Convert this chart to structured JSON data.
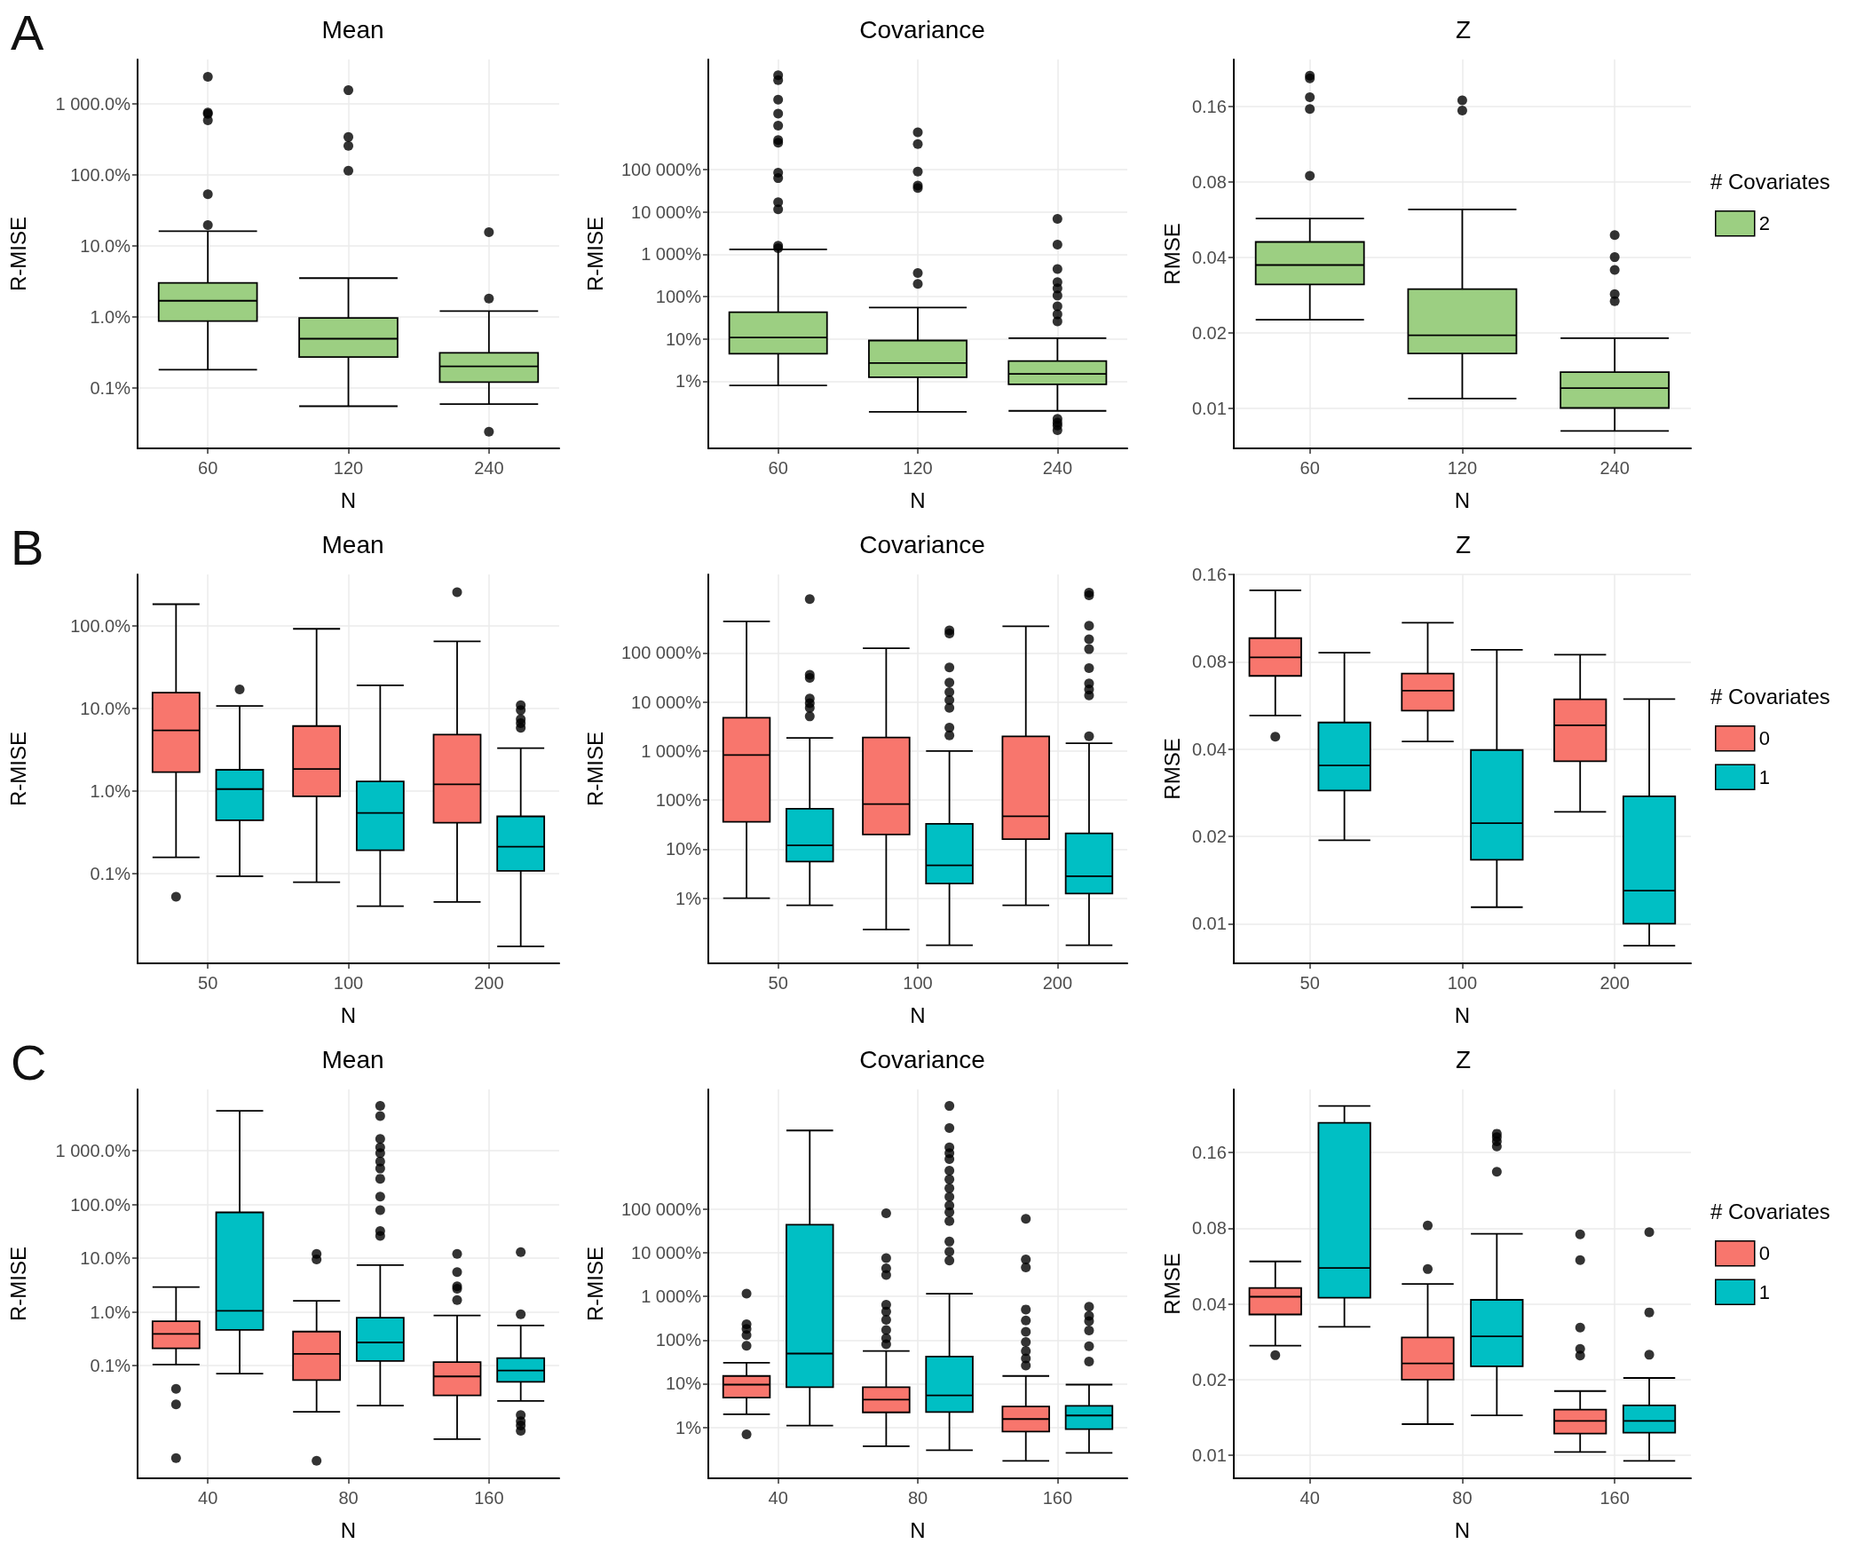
{
  "chart_data": [
    {
      "type": "box",
      "title": "Mean",
      "xlabel": "N",
      "ylabel": "R-MISE",
      "annotations": [
        "A"
      ],
      "categories": [
        "60",
        "120",
        "240"
      ],
      "log": true,
      "grid": true,
      "ylim": [
        0.014,
        4200
      ],
      "yticks": [
        {
          "value": 0.1,
          "label": "0.1%"
        },
        {
          "value": 1,
          "label": "1.0%"
        },
        {
          "value": 10,
          "label": "10.0%"
        },
        {
          "value": 100,
          "label": "100.0%"
        },
        {
          "value": 1000,
          "label": "1 000.0%"
        }
      ],
      "series": [
        {
          "color": "#9ccf82",
          "boxes": [
            {
              "low": 0.18,
              "q1": 0.87,
              "median": 1.68,
              "q3": 3.0,
              "high": 16,
              "outliers": [
                19.5,
                53,
                585,
                720,
                750,
                2400
              ]
            },
            {
              "low": 0.055,
              "q1": 0.27,
              "median": 0.49,
              "q3": 0.96,
              "high": 3.5,
              "outliers": [
                114,
                256,
                340,
                1550
              ]
            },
            {
              "low": 0.059,
              "q1": 0.12,
              "median": 0.2,
              "q3": 0.31,
              "high": 1.2,
              "outliers": [
                0.024,
                1.8,
                15.5
              ]
            }
          ]
        }
      ]
    },
    {
      "type": "box",
      "title": "Covariance",
      "xlabel": "N",
      "ylabel": "R-MISE",
      "categories": [
        "60",
        "120",
        "240"
      ],
      "log": true,
      "grid": true,
      "ylim": [
        0.026,
        40000000
      ],
      "yticks": [
        {
          "value": 1,
          "label": "1%"
        },
        {
          "value": 10,
          "label": "10%"
        },
        {
          "value": 100,
          "label": "100%"
        },
        {
          "value": 1000,
          "label": "1 000%"
        },
        {
          "value": 10000,
          "label": "10 000%"
        },
        {
          "value": 100000,
          "label": "100 000%"
        }
      ],
      "series": [
        {
          "color": "#9ccf82",
          "boxes": [
            {
              "low": 0.8,
              "q1": 4.5,
              "median": 10.8,
              "q3": 43,
              "high": 1300,
              "outliers": [
                1400,
                1600,
                11500,
                17000,
                63000,
                85000,
                430000,
                500000,
                1100000,
                2100000,
                4500000,
                13000000,
                17000000
              ]
            },
            {
              "low": 0.19,
              "q1": 1.25,
              "median": 2.7,
              "q3": 9.2,
              "high": 55,
              "outliers": [
                200,
                360,
                37000,
                42000,
                90000,
                400000,
                760000
              ]
            },
            {
              "low": 0.2,
              "q1": 0.85,
              "median": 1.5,
              "q3": 3.0,
              "high": 10.4,
              "outliers": [
                0.07,
                0.09,
                0.105,
                0.13,
                26,
                38,
                59,
                106,
                156,
                220,
                450,
                1700,
                6900
              ]
            }
          ]
        }
      ]
    },
    {
      "type": "box",
      "title": "Z",
      "xlabel": "N",
      "ylabel": "RMSE",
      "categories": [
        "60",
        "120",
        "240"
      ],
      "log": true,
      "grid": true,
      "ylim": [
        0.0069,
        0.246
      ],
      "yticks": [
        0.01,
        0.02,
        0.04,
        0.08,
        0.16
      ],
      "legend": "right",
      "legend_title": "# Covariates",
      "series": [
        {
          "name": "2",
          "color": "#9ccf82",
          "boxes": [
            {
              "low": 0.0225,
              "q1": 0.0311,
              "median": 0.0372,
              "q3": 0.046,
              "high": 0.057,
              "outliers": [
                0.0845,
                0.156,
                0.174,
                0.207,
                0.212
              ]
            },
            {
              "low": 0.0109,
              "q1": 0.0165,
              "median": 0.0195,
              "q3": 0.0298,
              "high": 0.062,
              "outliers": [
                0.154,
                0.169
              ]
            },
            {
              "low": 0.0081,
              "q1": 0.01,
              "median": 0.012,
              "q3": 0.0139,
              "high": 0.019,
              "outliers": [
                0.0267,
                0.0285,
                0.0356,
                0.04,
                0.049
              ]
            }
          ]
        }
      ]
    },
    {
      "type": "box",
      "title": "Mean",
      "xlabel": "N",
      "ylabel": "R-MISE",
      "annotations": [
        "B"
      ],
      "categories": [
        "50",
        "100",
        "200"
      ],
      "log": true,
      "grid": true,
      "ylim": [
        0.0081,
        420
      ],
      "yticks": [
        {
          "value": 0.1,
          "label": "0.1%"
        },
        {
          "value": 1,
          "label": "1.0%"
        },
        {
          "value": 10,
          "label": "10.0%"
        },
        {
          "value": 100,
          "label": "100.0%"
        }
      ],
      "series": [
        {
          "color": "#f8766d",
          "boxes": [
            {
              "low": 0.156,
              "q1": 1.69,
              "median": 5.4,
              "q3": 15.5,
              "high": 183,
              "outliers": [
                0.052
              ]
            },
            {
              "low": 0.078,
              "q1": 0.86,
              "median": 1.84,
              "q3": 6.1,
              "high": 92
            },
            {
              "low": 0.045,
              "q1": 0.41,
              "median": 1.2,
              "q3": 4.8,
              "high": 65,
              "outliers": [
                256
              ]
            }
          ]
        },
        {
          "color": "#00bfc4",
          "boxes": [
            {
              "low": 0.092,
              "q1": 0.44,
              "median": 1.05,
              "q3": 1.8,
              "high": 10.7,
              "outliers": [
                17
              ]
            },
            {
              "low": 0.04,
              "q1": 0.19,
              "median": 0.54,
              "q3": 1.3,
              "high": 19
            },
            {
              "low": 0.013,
              "q1": 0.107,
              "median": 0.21,
              "q3": 0.49,
              "high": 3.3,
              "outliers": [
                5.8,
                6.6,
                7.4,
                9.5,
                10.9
              ]
            }
          ]
        }
      ]
    },
    {
      "type": "box",
      "title": "Covariance",
      "xlabel": "N",
      "ylabel": "R-MISE",
      "categories": [
        "50",
        "100",
        "200"
      ],
      "log": true,
      "grid": true,
      "ylim": [
        0.047,
        4000000
      ],
      "yticks": [
        {
          "value": 1,
          "label": "1%"
        },
        {
          "value": 10,
          "label": "10%"
        },
        {
          "value": 100,
          "label": "100%"
        },
        {
          "value": 1000,
          "label": "1 000%"
        },
        {
          "value": 10000,
          "label": "10 000%"
        },
        {
          "value": 100000,
          "label": "100 000%"
        }
      ],
      "series": [
        {
          "color": "#f8766d",
          "boxes": [
            {
              "low": 1,
              "q1": 36,
              "median": 830,
              "q3": 4800,
              "high": 440000
            },
            {
              "low": 0.23,
              "q1": 20,
              "median": 83,
              "q3": 1900,
              "high": 125000
            },
            {
              "low": 0.72,
              "q1": 16,
              "median": 47,
              "q3": 2000,
              "high": 350000
            }
          ]
        },
        {
          "color": "#00bfc4",
          "boxes": [
            {
              "low": 0.72,
              "q1": 5.6,
              "median": 12,
              "q3": 67,
              "high": 1850,
              "outliers": [
                5100,
                7600,
                9500,
                11800,
                31000,
                36000,
                1260000
              ]
            },
            {
              "low": 0.11,
              "q1": 2.0,
              "median": 4.7,
              "q3": 33,
              "high": 1000,
              "outliers": [
                2100,
                3000,
                7600,
                11000,
                16000,
                25000,
                51000,
                250000,
                290000
              ]
            },
            {
              "low": 0.11,
              "q1": 1.25,
              "median": 2.8,
              "q3": 21,
              "high": 1450,
              "outliers": [
                2000,
                13600,
                18000,
                24000,
                49000,
                120000,
                190000,
                360000,
                1500000,
                1700000
              ]
            }
          ]
        }
      ]
    },
    {
      "type": "box",
      "title": "Z",
      "xlabel": "N",
      "ylabel": "RMSE",
      "categories": [
        "50",
        "100",
        "200"
      ],
      "log": true,
      "grid": true,
      "ylim": [
        0.0073,
        0.16
      ],
      "yticks": [
        0.01,
        0.02,
        0.04,
        0.08,
        0.16
      ],
      "legend": "right",
      "legend_title": "# Covariates",
      "series": [
        {
          "name": "0",
          "color": "#f8766d",
          "boxes": [
            {
              "low": 0.0522,
              "q1": 0.0715,
              "median": 0.0828,
              "q3": 0.0965,
              "high": 0.141,
              "outliers": [
                0.0441
              ]
            },
            {
              "low": 0.0425,
              "q1": 0.0543,
              "median": 0.0636,
              "q3": 0.0728,
              "high": 0.109
            },
            {
              "low": 0.0243,
              "q1": 0.0363,
              "median": 0.0483,
              "q3": 0.0594,
              "high": 0.0846
            }
          ]
        },
        {
          "name": "1",
          "color": "#00bfc4",
          "boxes": [
            {
              "low": 0.0194,
              "q1": 0.0288,
              "median": 0.0351,
              "q3": 0.0494,
              "high": 0.086
            },
            {
              "low": 0.0114,
              "q1": 0.0166,
              "median": 0.0222,
              "q3": 0.0397,
              "high": 0.088
            },
            {
              "low": 0.0084,
              "q1": 0.01,
              "median": 0.013,
              "q3": 0.0275,
              "high": 0.0595
            }
          ]
        }
      ]
    },
    {
      "type": "box",
      "title": "Mean",
      "xlabel": "N",
      "ylabel": "R-MISE",
      "annotations": [
        "C"
      ],
      "categories": [
        "40",
        "80",
        "160"
      ],
      "log": true,
      "grid": true,
      "ylim": [
        0.0008,
        13800
      ],
      "yticks": [
        {
          "value": 0.1,
          "label": "0.1%"
        },
        {
          "value": 1,
          "label": "1.0%"
        },
        {
          "value": 10,
          "label": "10.0%"
        },
        {
          "value": 100,
          "label": "100.0%"
        },
        {
          "value": 1000,
          "label": "1 000.0%"
        }
      ],
      "series": [
        {
          "color": "#f8766d",
          "boxes": [
            {
              "low": 0.105,
              "q1": 0.21,
              "median": 0.39,
              "q3": 0.67,
              "high": 2.9,
              "outliers": [
                0.0019,
                0.019,
                0.037
              ]
            },
            {
              "low": 0.0138,
              "q1": 0.054,
              "median": 0.165,
              "q3": 0.43,
              "high": 1.6,
              "outliers": [
                0.0017,
                9.5,
                12
              ]
            },
            {
              "low": 0.0043,
              "q1": 0.028,
              "median": 0.063,
              "q3": 0.116,
              "high": 0.86,
              "outliers": [
                1.66,
                2.7,
                3.0,
                5.5,
                12
              ]
            }
          ]
        },
        {
          "color": "#00bfc4",
          "boxes": [
            {
              "low": 0.071,
              "q1": 0.46,
              "median": 1.05,
              "q3": 71,
              "high": 5500
            },
            {
              "low": 0.018,
              "q1": 0.122,
              "median": 0.27,
              "q3": 0.78,
              "high": 7.4,
              "outliers": [
                26,
                32,
                78,
                140,
                300,
                465,
                630,
                900,
                1150,
                1650,
                4400,
                6800
              ]
            },
            {
              "low": 0.022,
              "q1": 0.05,
              "median": 0.081,
              "q3": 0.138,
              "high": 0.56,
              "outliers": [
                0.0061,
                0.0077,
                0.0092,
                0.012,
                0.9,
                13
              ]
            }
          ]
        }
      ]
    },
    {
      "type": "box",
      "title": "Covariance",
      "xlabel": "N",
      "ylabel": "R-MISE",
      "categories": [
        "40",
        "80",
        "160"
      ],
      "log": true,
      "grid": true,
      "ylim": [
        0.068,
        55000000
      ],
      "yticks": [
        {
          "value": 1,
          "label": "1%"
        },
        {
          "value": 10,
          "label": "10%"
        },
        {
          "value": 100,
          "label": "100%"
        },
        {
          "value": 1000,
          "label": "1 000%"
        },
        {
          "value": 10000,
          "label": "10 000%"
        },
        {
          "value": 100000,
          "label": "100 000%"
        }
      ],
      "series": [
        {
          "color": "#f8766d",
          "boxes": [
            {
              "low": 2,
              "q1": 4.8,
              "median": 9.5,
              "q3": 15,
              "high": 30,
              "outliers": [
                0.69,
                74,
                130,
                180,
                230,
                1150
              ]
            },
            {
              "low": 0.37,
              "q1": 2.2,
              "median": 4.3,
              "q3": 8.3,
              "high": 56,
              "outliers": [
                80,
                110,
                170,
                290,
                450,
                640,
                3100,
                4400,
                7500,
                80000
              ]
            },
            {
              "low": 0.17,
              "q1": 0.8,
              "median": 1.55,
              "q3": 3.0,
              "high": 15,
              "outliers": [
                26,
                38,
                56,
                90,
                155,
                280,
                500,
                4600,
                7000,
                60000
              ]
            }
          ]
        },
        {
          "color": "#00bfc4",
          "boxes": [
            {
              "low": 1.1,
              "q1": 8.3,
              "median": 49,
              "q3": 44000,
              "high": 6300000
            },
            {
              "low": 0.3,
              "q1": 2.25,
              "median": 5.4,
              "q3": 42,
              "high": 1150,
              "outliers": [
                6600,
                10600,
                18000,
                53000,
                85000,
                120000,
                190000,
                300000,
                480000,
                760000,
                1400000,
                1900000,
                2600000,
                7200000,
                23000000
              ]
            },
            {
              "low": 0.26,
              "q1": 0.91,
              "median": 1.87,
              "q3": 3.1,
              "high": 9.5,
              "outliers": [
                32,
                72,
                165,
                270,
                360,
                580
              ]
            }
          ]
        }
      ]
    },
    {
      "type": "box",
      "title": "Z",
      "xlabel": "N",
      "ylabel": "RMSE",
      "categories": [
        "40",
        "80",
        "160"
      ],
      "log": true,
      "grid": true,
      "ylim": [
        0.0081,
        0.285
      ],
      "yticks": [
        0.01,
        0.02,
        0.04,
        0.08,
        0.16
      ],
      "legend": "right",
      "legend_title": "# Covariates",
      "series": [
        {
          "name": "0",
          "color": "#f8766d",
          "boxes": [
            {
              "low": 0.0273,
              "q1": 0.0363,
              "median": 0.0427,
              "q3": 0.0463,
              "high": 0.059,
              "outliers": [
                0.025
              ]
            },
            {
              "low": 0.0133,
              "q1": 0.02,
              "median": 0.0232,
              "q3": 0.0294,
              "high": 0.048,
              "outliers": [
                0.055,
                0.082
              ]
            },
            {
              "low": 0.0103,
              "q1": 0.0122,
              "median": 0.0137,
              "q3": 0.0152,
              "high": 0.018,
              "outliers": [
                0.0249,
                0.0265,
                0.0322,
                0.0597,
                0.0756
              ]
            }
          ]
        },
        {
          "name": "1",
          "color": "#00bfc4",
          "boxes": [
            {
              "low": 0.0324,
              "q1": 0.0423,
              "median": 0.0556,
              "q3": 0.21,
              "high": 0.245
            },
            {
              "low": 0.0144,
              "q1": 0.0226,
              "median": 0.0297,
              "q3": 0.0415,
              "high": 0.076,
              "outliers": [
                0.134,
                0.169,
                0.177,
                0.184,
                0.19
              ]
            },
            {
              "low": 0.0095,
              "q1": 0.0123,
              "median": 0.0137,
              "q3": 0.0158,
              "high": 0.0203,
              "outliers": [
                0.0251,
                0.037,
                0.0772
              ]
            }
          ]
        }
      ]
    }
  ]
}
